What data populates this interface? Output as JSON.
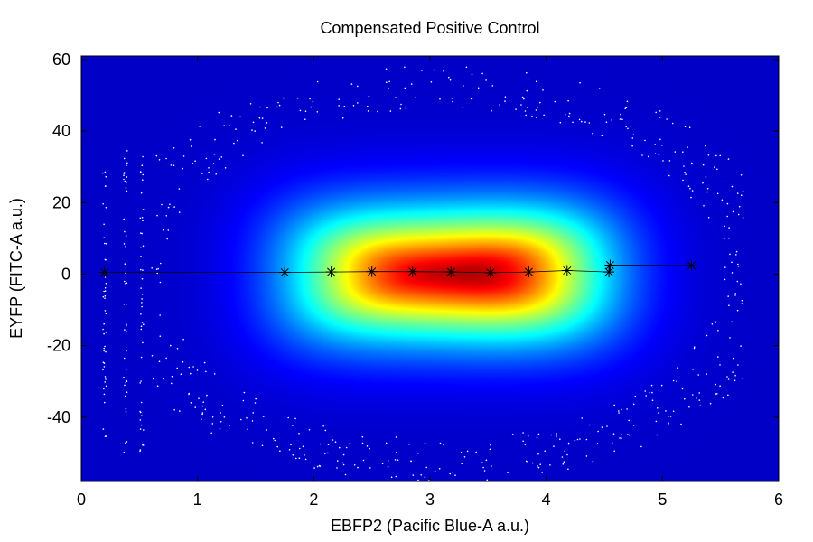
{
  "chart_data": {
    "type": "heatmap",
    "title": "Compensated Positive Control",
    "xlabel": "EBFP2 (Pacific Blue-A a.u.)",
    "ylabel": "EYFP (FITC-A a.u.)",
    "xlim": [
      0,
      6
    ],
    "ylim": [
      -58,
      61
    ],
    "x_ticks": [
      0,
      1,
      2,
      3,
      4,
      5,
      6
    ],
    "y_ticks": [
      -40,
      -20,
      0,
      20,
      40,
      60
    ],
    "colormap": "jet",
    "colors": {
      "background_low": "#00008f",
      "line": "#000000",
      "marker": "#000000",
      "outlier_dots": "#ffffff"
    },
    "density": {
      "x_range": [
        1.4,
        4.9
      ],
      "y_range": [
        -28,
        28
      ],
      "peak": {
        "x": 3.7,
        "y": 0
      }
    },
    "series": [
      {
        "type": "line",
        "marker": "asterisk",
        "points": [
          {
            "x": 0.2,
            "y": 0.5
          },
          {
            "x": 1.75,
            "y": 0.5
          },
          {
            "x": 2.15,
            "y": 0.6
          },
          {
            "x": 2.5,
            "y": 0.7
          },
          {
            "x": 2.85,
            "y": 0.7
          },
          {
            "x": 3.18,
            "y": 0.6
          },
          {
            "x": 3.52,
            "y": 0.4
          },
          {
            "x": 3.85,
            "y": 0.6
          },
          {
            "x": 4.18,
            "y": 1.0
          },
          {
            "x": 4.54,
            "y": 0.6
          },
          {
            "x": 4.55,
            "y": 2.5
          },
          {
            "x": 5.25,
            "y": 2.4
          }
        ]
      }
    ]
  }
}
